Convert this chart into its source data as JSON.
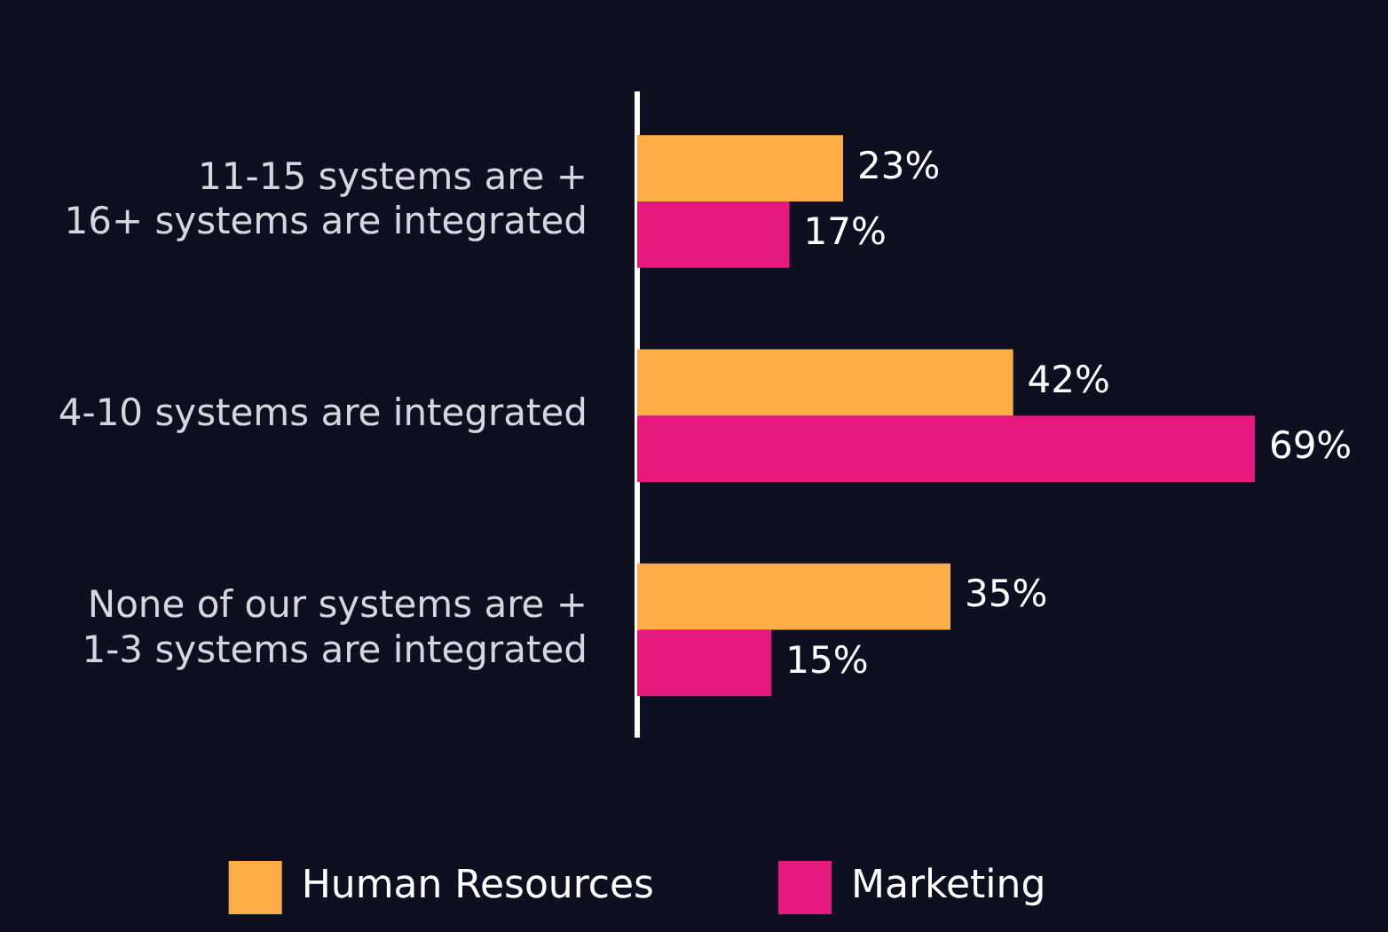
{
  "chart_data": {
    "type": "bar",
    "orientation": "horizontal",
    "legend": "bottom",
    "tick_labels": "y",
    "categories": [
      "11-15 systems are +\n16+ systems are integrated",
      "4-10 systems are integrated",
      "None of our systems are +\n1-3 systems are integrated"
    ],
    "series": [
      {
        "name": "Human Resources",
        "color": "#ffad47",
        "values": [
          23,
          42,
          35
        ],
        "value_labels": [
          "23%",
          "42%",
          "35%"
        ]
      },
      {
        "name": "Marketing",
        "color": "#e6197f",
        "values": [
          17,
          69,
          15
        ],
        "value_labels": [
          "17%",
          "69%",
          "15%"
        ]
      }
    ]
  }
}
